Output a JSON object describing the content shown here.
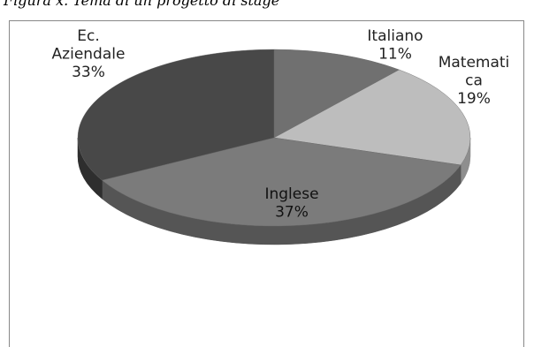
{
  "caption": "Figura x. Tema di un progetto di stage",
  "chart_data": {
    "type": "pie",
    "style": "3d",
    "slices": [
      {
        "label": "Italiano",
        "value": 11,
        "value_label": "11%",
        "color": "#707070",
        "side_color": "#4a4a4a",
        "label_lines": [
          "Italiano",
          "11%"
        ]
      },
      {
        "label": "Matematica",
        "value": 19,
        "value_label": "19%",
        "color": "#bdbdbd",
        "side_color": "#8e8e8e",
        "label_lines": [
          "Matemati",
          "ca",
          "19%"
        ]
      },
      {
        "label": "Inglese",
        "value": 37,
        "value_label": "37%",
        "color": "#7b7b7b",
        "side_color": "#555555",
        "label_lines": [
          "Inglese",
          "37%"
        ]
      },
      {
        "label": "Ec. Aziendale",
        "value": 33,
        "value_label": "33%",
        "color": "#484848",
        "side_color": "#2e2e2e",
        "label_lines": [
          "Ec.",
          "Aziendale",
          "33%"
        ]
      }
    ]
  }
}
